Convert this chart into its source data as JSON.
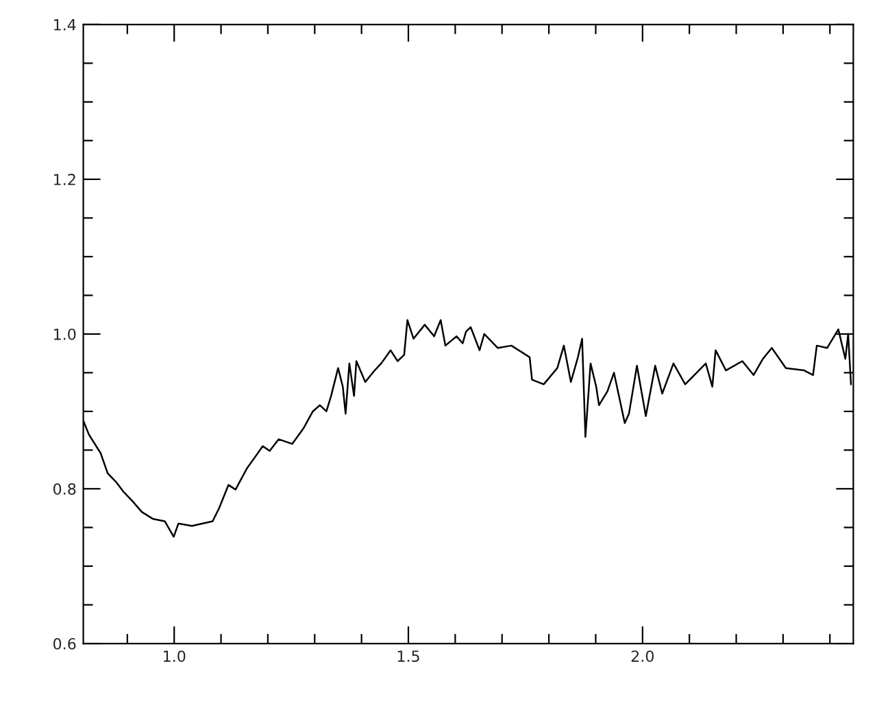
{
  "chart_data": {
    "type": "line",
    "grid": false,
    "marker": "none",
    "line_style": "solid",
    "xlim": [
      0.806,
      2.45
    ],
    "ylim": [
      0.6,
      1.4
    ],
    "xticks": [
      {
        "value": 0.9,
        "label": null
      },
      {
        "value": 1.0,
        "label": "1.0"
      },
      {
        "value": 1.1,
        "label": null
      },
      {
        "value": 1.2,
        "label": null
      },
      {
        "value": 1.3,
        "label": null
      },
      {
        "value": 1.4,
        "label": null
      },
      1.5,
      {
        "value": 1.6,
        "label": null
      },
      {
        "value": 1.7,
        "label": null
      },
      {
        "value": 1.8,
        "label": null
      },
      {
        "value": 1.9,
        "label": null
      },
      {
        "value": 2.0,
        "label": "2.0"
      },
      {
        "value": 2.1,
        "label": null
      },
      {
        "value": 2.2,
        "label": null
      },
      {
        "value": 2.3,
        "label": null
      },
      {
        "value": 2.4,
        "label": null
      }
    ],
    "yticks": [
      0.6,
      {
        "value": 0.65,
        "label": null
      },
      {
        "value": 0.7,
        "label": null
      },
      {
        "value": 0.75,
        "label": null
      },
      0.8,
      {
        "value": 0.85,
        "label": null
      },
      {
        "value": 0.9,
        "label": null
      },
      {
        "value": 0.95,
        "label": null
      },
      {
        "value": 1.0,
        "label": "1.0"
      },
      {
        "value": 1.05,
        "label": null
      },
      {
        "value": 1.1,
        "label": null
      },
      {
        "value": 1.15,
        "label": null
      },
      1.2,
      {
        "value": 1.25,
        "label": null
      },
      {
        "value": 1.3,
        "label": null
      },
      {
        "value": 1.35,
        "label": null
      },
      1.4
    ],
    "series": [
      {
        "color": "#000000",
        "x": [
          0.806,
          0.818,
          0.843,
          0.858,
          0.877,
          0.892,
          0.911,
          0.931,
          0.955,
          0.98,
          0.999,
          1.009,
          1.038,
          1.067,
          1.082,
          1.096,
          1.116,
          1.131,
          1.155,
          1.175,
          1.189,
          1.204,
          1.223,
          1.252,
          1.277,
          1.296,
          1.311,
          1.325,
          1.335,
          1.35,
          1.36,
          1.366,
          1.374,
          1.384,
          1.389,
          1.408,
          1.428,
          1.442,
          1.462,
          1.477,
          1.491,
          1.498,
          1.511,
          1.535,
          1.555,
          1.569,
          1.579,
          1.603,
          1.616,
          1.623,
          1.633,
          1.652,
          1.662,
          1.691,
          1.72,
          1.759,
          1.764,
          1.789,
          1.818,
          1.832,
          1.847,
          1.862,
          1.871,
          1.878,
          1.889,
          1.901,
          1.907,
          1.925,
          1.939,
          1.962,
          1.971,
          1.988,
          2.007,
          2.027,
          2.042,
          2.066,
          2.091,
          2.135,
          2.149,
          2.156,
          2.178,
          2.213,
          2.237,
          2.257,
          2.276,
          2.306,
          2.345,
          2.364,
          2.372,
          2.394,
          2.418,
          2.433,
          2.439,
          2.445
        ],
        "values": [
          0.888,
          0.87,
          0.846,
          0.82,
          0.808,
          0.796,
          0.784,
          0.77,
          0.761,
          0.758,
          0.738,
          0.755,
          0.752,
          0.756,
          0.758,
          0.775,
          0.805,
          0.799,
          0.826,
          0.843,
          0.855,
          0.849,
          0.864,
          0.858,
          0.879,
          0.9,
          0.908,
          0.9,
          0.92,
          0.956,
          0.932,
          0.897,
          0.962,
          0.92,
          0.965,
          0.938,
          0.953,
          0.962,
          0.979,
          0.965,
          0.973,
          1.018,
          0.994,
          1.012,
          0.997,
          1.018,
          0.985,
          0.997,
          0.988,
          1.003,
          1.009,
          0.979,
          1.0,
          0.982,
          0.985,
          0.97,
          0.941,
          0.935,
          0.956,
          0.985,
          0.938,
          0.97,
          0.994,
          0.867,
          0.962,
          0.932,
          0.908,
          0.926,
          0.95,
          0.885,
          0.897,
          0.959,
          0.894,
          0.959,
          0.923,
          0.962,
          0.935,
          0.962,
          0.932,
          0.979,
          0.953,
          0.965,
          0.947,
          0.968,
          0.982,
          0.956,
          0.953,
          0.947,
          0.985,
          0.982,
          1.006,
          0.968,
          1.0,
          0.935
        ]
      }
    ]
  }
}
